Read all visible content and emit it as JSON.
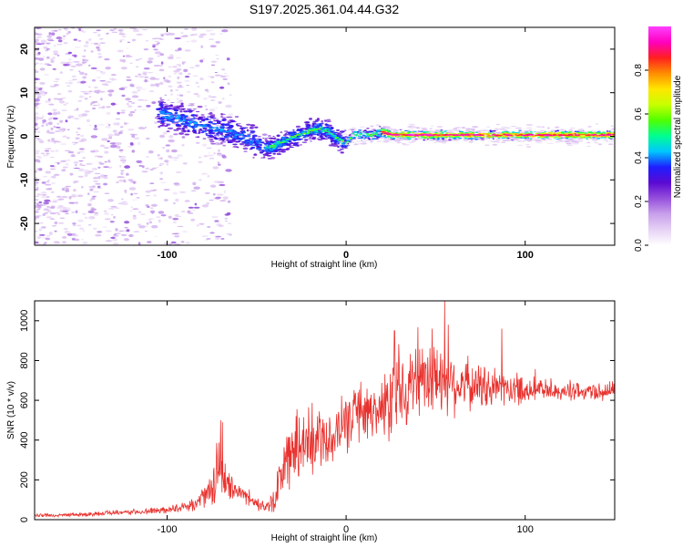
{
  "chart_data": [
    {
      "type": "heatmap",
      "title": "S197.2025.361.04.44.G32",
      "xlabel": "Height of straight line (km)",
      "ylabel": "Frequency (Hz)",
      "xlim": [
        -174,
        150
      ],
      "ylim": [
        -25,
        25
      ],
      "x_ticks": [
        -100,
        0,
        100
      ],
      "x_tick_labels": [
        "-100",
        "0",
        "100"
      ],
      "y_ticks": [
        -20,
        -10,
        0,
        10,
        20
      ],
      "y_tick_labels": [
        "-20",
        "-10",
        "0",
        "10",
        "20"
      ],
      "colorbar": {
        "label": "Normalized spectral amplitude",
        "range": [
          0,
          1
        ],
        "ticks": [
          0.0,
          0.2,
          0.4,
          0.6,
          0.8
        ],
        "tick_labels": [
          "0.0",
          "0.2",
          "0.4",
          "0.6",
          "0.8"
        ],
        "colors": [
          "#ffffff",
          "#e6d2f5",
          "#c8a0eb",
          "#9650dc",
          "#5a0ad2",
          "#1e1eff",
          "#00c8ff",
          "#00ff90",
          "#50ff00",
          "#c8ff00",
          "#ffe600",
          "#ff8c00",
          "#ff2020",
          "#ff00c0",
          "#ff40ff"
        ]
      },
      "ridge": {
        "x": [
          -100,
          -90,
          -80,
          -70,
          -60,
          -50,
          -45,
          -40,
          -35,
          -30,
          -25,
          -20,
          -15,
          -10,
          -5,
          0,
          5,
          10,
          15,
          20,
          25,
          30,
          40,
          60,
          80,
          100,
          120,
          150
        ],
        "y": [
          5,
          3.5,
          2.5,
          1.5,
          0.5,
          -1.5,
          -2.8,
          -2.2,
          -1.2,
          -0.3,
          0.5,
          1.2,
          1.8,
          1.2,
          -0.5,
          -1.5,
          0.6,
          0.5,
          0.3,
          1.0,
          0.4,
          0.3,
          0.3,
          0.3,
          0.3,
          0.3,
          0.3,
          0.3
        ]
      }
    },
    {
      "type": "line",
      "xlabel": "Height of straight line (km)",
      "ylabel": "SNR (10 * v/v)",
      "xlim": [
        -174,
        150
      ],
      "ylim": [
        0,
        1100
      ],
      "x_ticks": [
        -100,
        0,
        100
      ],
      "x_tick_labels": [
        "-100",
        "0",
        "100"
      ],
      "y_ticks": [
        0,
        200,
        400,
        600,
        800,
        1000
      ],
      "y_tick_labels": [
        "0",
        "200",
        "400",
        "600",
        "800",
        "1000"
      ],
      "series": [
        {
          "name": "SNR",
          "color": "#e8322e",
          "x": [
            -174,
            -150,
            -125,
            -105,
            -95,
            -85,
            -80,
            -75,
            -72,
            -70,
            -68,
            -65,
            -60,
            -55,
            -50,
            -45,
            -40,
            -36,
            -33,
            -30,
            -25,
            -20,
            -15,
            -10,
            -5,
            0,
            5,
            10,
            15,
            20,
            24,
            27,
            30,
            35,
            40,
            45,
            50,
            55,
            60,
            65,
            70,
            80,
            90,
            100,
            110,
            120,
            130,
            140,
            150
          ],
          "y": [
            20,
            25,
            35,
            45,
            55,
            75,
            110,
            170,
            210,
            230,
            200,
            160,
            140,
            110,
            80,
            60,
            90,
            240,
            300,
            340,
            380,
            400,
            410,
            440,
            450,
            470,
            500,
            520,
            540,
            560,
            600,
            640,
            660,
            670,
            680,
            690,
            700,
            700,
            690,
            680,
            670,
            665,
            660,
            655,
            650,
            645,
            640,
            645,
            650
          ],
          "spread": [
            10,
            12,
            15,
            20,
            25,
            35,
            60,
            110,
            150,
            160,
            120,
            80,
            60,
            50,
            40,
            30,
            80,
            170,
            190,
            210,
            200,
            190,
            180,
            170,
            170,
            170,
            170,
            170,
            180,
            200,
            230,
            240,
            240,
            230,
            220,
            210,
            210,
            200,
            190,
            170,
            150,
            120,
            100,
            90,
            70,
            60,
            55,
            55,
            55
          ],
          "peaks": [
            {
              "x": -70,
              "y": 500
            },
            {
              "x": -69,
              "y": 490
            },
            {
              "x": 27,
              "y": 950
            },
            {
              "x": 48,
              "y": 960
            },
            {
              "x": 55,
              "y": 1100
            },
            {
              "x": 57,
              "y": 980
            },
            {
              "x": 87,
              "y": 960
            }
          ]
        }
      ]
    }
  ]
}
